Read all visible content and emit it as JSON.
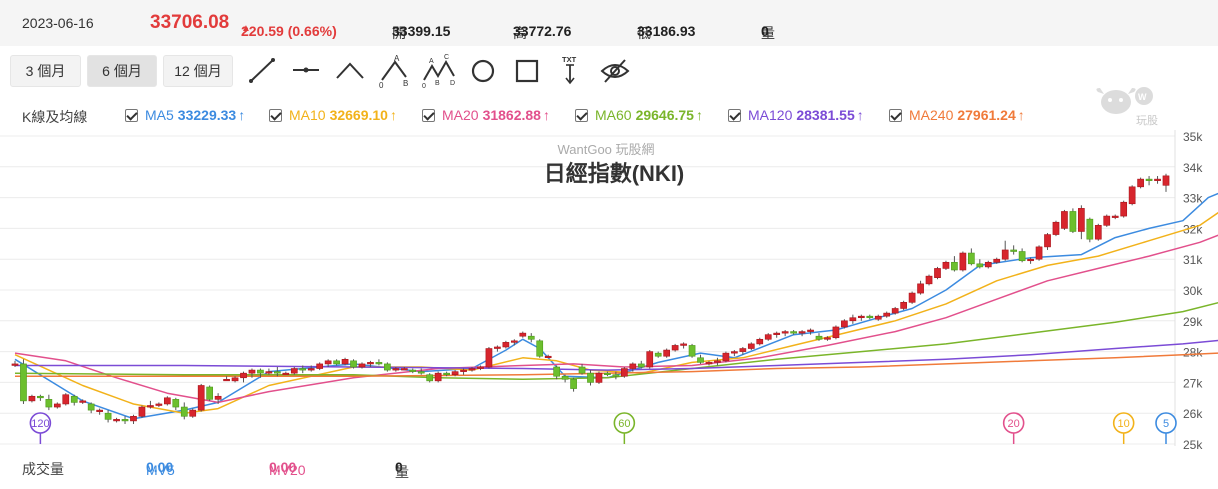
{
  "header": {
    "date": "2023-06-16",
    "price": "33706.08",
    "change": "220.59 (0.66%)",
    "open_label": "開",
    "open": "33399.15",
    "high_label": "高",
    "high": "33772.76",
    "low_label": "低",
    "low": "33186.93",
    "vol_label": "量",
    "vol": "0"
  },
  "toolbar": {
    "ranges": [
      "3 個月",
      "6 個月",
      "12 個月"
    ],
    "active_range": 1,
    "tools": [
      "line-tool-icon",
      "horizontal-line-tool-icon",
      "peak-line-tool-icon",
      "abc-pattern-tool-icon",
      "abcd-pattern-tool-icon",
      "circle-tool-icon",
      "rectangle-tool-icon",
      "text-tool-icon",
      "hide-drawings-icon"
    ],
    "tool_labels": {
      "abc": [
        "A",
        "0",
        "B"
      ],
      "abcd": [
        "A",
        "C",
        "0",
        "B",
        "D"
      ],
      "txt": "TXT"
    }
  },
  "ma_legend": {
    "label": "K線及均線",
    "items": [
      {
        "name": "MA5",
        "value": "33229.33",
        "arrow": "↑",
        "color": "#3c8be0"
      },
      {
        "name": "MA10",
        "value": "32669.10",
        "arrow": "↑",
        "color": "#f2b21a"
      },
      {
        "name": "MA20",
        "value": "31862.88",
        "arrow": "↑",
        "color": "#e2508c"
      },
      {
        "name": "MA60",
        "value": "29646.75",
        "arrow": "↑",
        "color": "#7ab52a"
      },
      {
        "name": "MA120",
        "value": "28381.55",
        "arrow": "↑",
        "color": "#7b4bd6"
      },
      {
        "name": "MA240",
        "value": "27961.24",
        "arrow": "↑",
        "color": "#f07a3a"
      }
    ]
  },
  "logo": {
    "text": "玩股網"
  },
  "volume_legend": {
    "label": "成交量",
    "mv5_label": "MV5",
    "mv5": "0.00",
    "mv5_color": "#3c8be0",
    "mv20_label": "MV20",
    "mv20": "0.00",
    "mv20_color": "#e2508c",
    "vol_label": "量",
    "vol": "0"
  },
  "colors": {
    "up": "#d7252d",
    "down": "#6cbf2e",
    "grid": "#ececec"
  },
  "chart_data": {
    "type": "candlestick",
    "watermark": "WantGoo 玩股網",
    "title": "日經指數(NKI)",
    "ylim": [
      25000,
      35000
    ],
    "yticks": [
      25000,
      26000,
      27000,
      28000,
      29000,
      30000,
      31000,
      32000,
      33000,
      34000,
      35000
    ],
    "ytick_labels": [
      "25k",
      "26k",
      "27k",
      "28k",
      "29k",
      "30k",
      "31k",
      "32k",
      "33k",
      "34k",
      "35k"
    ],
    "candles": [
      [
        27550,
        27700,
        27500,
        27600
      ],
      [
        27600,
        27750,
        26300,
        26400
      ],
      [
        26400,
        26600,
        26350,
        26550
      ],
      [
        26550,
        26600,
        26400,
        26500
      ],
      [
        26450,
        26600,
        26100,
        26200
      ],
      [
        26200,
        26350,
        26150,
        26300
      ],
      [
        26300,
        26650,
        26250,
        26600
      ],
      [
        26550,
        26600,
        26250,
        26350
      ],
      [
        26350,
        26450,
        26300,
        26400
      ],
      [
        26300,
        26350,
        26000,
        26100
      ],
      [
        26050,
        26150,
        25950,
        26100
      ],
      [
        26000,
        26100,
        25700,
        25800
      ],
      [
        25750,
        25850,
        25700,
        25800
      ],
      [
        25800,
        25900,
        25650,
        25750
      ],
      [
        25750,
        25950,
        25650,
        25900
      ],
      [
        25900,
        26250,
        25850,
        26200
      ],
      [
        26200,
        26400,
        26150,
        26250
      ],
      [
        26250,
        26350,
        26200,
        26300
      ],
      [
        26300,
        26550,
        26250,
        26500
      ],
      [
        26450,
        26500,
        26100,
        26200
      ],
      [
        26200,
        26350,
        25800,
        25900
      ],
      [
        25900,
        26150,
        25850,
        26100
      ],
      [
        26100,
        26950,
        26050,
        26900
      ],
      [
        26850,
        26900,
        26400,
        26450
      ],
      [
        26450,
        26650,
        26300,
        26550
      ],
      [
        27100,
        27200,
        27050,
        27100
      ],
      [
        27050,
        27200,
        27000,
        27150
      ],
      [
        27150,
        27350,
        27000,
        27300
      ],
      [
        27300,
        27450,
        27150,
        27400
      ],
      [
        27400,
        27450,
        27150,
        27300
      ],
      [
        27300,
        27450,
        27250,
        27350
      ],
      [
        27350,
        27500,
        27200,
        27300
      ],
      [
        27300,
        27350,
        27250,
        27300
      ],
      [
        27300,
        27500,
        27250,
        27450
      ],
      [
        27450,
        27550,
        27300,
        27400
      ],
      [
        27400,
        27550,
        27350,
        27450
      ],
      [
        27450,
        27650,
        27400,
        27600
      ],
      [
        27600,
        27750,
        27500,
        27700
      ],
      [
        27700,
        27750,
        27550,
        27600
      ],
      [
        27600,
        27800,
        27550,
        27750
      ],
      [
        27700,
        27750,
        27450,
        27500
      ],
      [
        27500,
        27650,
        27450,
        27600
      ],
      [
        27600,
        27700,
        27500,
        27650
      ],
      [
        27650,
        27750,
        27550,
        27600
      ],
      [
        27600,
        27650,
        27350,
        27400
      ],
      [
        27400,
        27500,
        27350,
        27450
      ],
      [
        27450,
        27500,
        27400,
        27450
      ],
      [
        27400,
        27450,
        27300,
        27350
      ],
      [
        27350,
        27450,
        27250,
        27300
      ],
      [
        27250,
        27300,
        27000,
        27050
      ],
      [
        27050,
        27350,
        27000,
        27300
      ],
      [
        27300,
        27350,
        27200,
        27250
      ],
      [
        27250,
        27400,
        27200,
        27350
      ],
      [
        27350,
        27450,
        27250,
        27400
      ],
      [
        27400,
        27500,
        27350,
        27450
      ],
      [
        27450,
        27550,
        27400,
        27500
      ],
      [
        27500,
        28150,
        27450,
        28100
      ],
      [
        28100,
        28200,
        28000,
        28150
      ],
      [
        28150,
        28350,
        28100,
        28300
      ],
      [
        28300,
        28400,
        28200,
        28350
      ],
      [
        28500,
        28650,
        28450,
        28600
      ],
      [
        28500,
        28600,
        28300,
        28400
      ],
      [
        28350,
        28400,
        27800,
        27850
      ],
      [
        27850,
        27900,
        27800,
        27850
      ],
      [
        27500,
        27550,
        27100,
        27200
      ],
      [
        27200,
        27250,
        27000,
        27100
      ],
      [
        27100,
        27150,
        26700,
        26800
      ],
      [
        27500,
        27600,
        27250,
        27300
      ],
      [
        27300,
        27400,
        26900,
        27000
      ],
      [
        27000,
        27350,
        26950,
        27300
      ],
      [
        27300,
        27350,
        27200,
        27250
      ],
      [
        27250,
        27350,
        27100,
        27200
      ],
      [
        27200,
        27500,
        27150,
        27450
      ],
      [
        27450,
        27650,
        27350,
        27600
      ],
      [
        27600,
        27700,
        27450,
        27500
      ],
      [
        27500,
        28050,
        27450,
        28000
      ],
      [
        27950,
        28000,
        27800,
        27850
      ],
      [
        27850,
        28100,
        27800,
        28050
      ],
      [
        28050,
        28250,
        28000,
        28200
      ],
      [
        28200,
        28300,
        28100,
        28250
      ],
      [
        28200,
        28250,
        27800,
        27850
      ],
      [
        27800,
        27900,
        27600,
        27650
      ],
      [
        27600,
        27700,
        27550,
        27650
      ],
      [
        27650,
        27800,
        27550,
        27700
      ],
      [
        27700,
        28000,
        27650,
        27950
      ],
      [
        27950,
        28050,
        27850,
        28000
      ],
      [
        28000,
        28150,
        27900,
        28100
      ],
      [
        28100,
        28300,
        28050,
        28250
      ],
      [
        28250,
        28450,
        28200,
        28400
      ],
      [
        28400,
        28600,
        28350,
        28550
      ],
      [
        28550,
        28650,
        28450,
        28600
      ],
      [
        28600,
        28700,
        28500,
        28650
      ],
      [
        28650,
        28700,
        28550,
        28600
      ],
      [
        28600,
        28700,
        28500,
        28650
      ],
      [
        28650,
        28750,
        28550,
        28700
      ],
      [
        28500,
        28600,
        28350,
        28400
      ],
      [
        28400,
        28500,
        28350,
        28450
      ],
      [
        28450,
        28850,
        28400,
        28800
      ],
      [
        28800,
        29050,
        28750,
        29000
      ],
      [
        29000,
        29200,
        28900,
        29100
      ],
      [
        29100,
        29200,
        29000,
        29150
      ],
      [
        29150,
        29200,
        29050,
        29100
      ],
      [
        29050,
        29200,
        29000,
        29150
      ],
      [
        29150,
        29300,
        29100,
        29250
      ],
      [
        29250,
        29450,
        29200,
        29400
      ],
      [
        29400,
        29650,
        29350,
        29600
      ],
      [
        29600,
        29950,
        29550,
        29900
      ],
      [
        29900,
        30300,
        29850,
        30200
      ],
      [
        30200,
        30500,
        30150,
        30450
      ],
      [
        30400,
        30750,
        30350,
        30700
      ],
      [
        30700,
        30950,
        30650,
        30900
      ],
      [
        30900,
        31100,
        30600,
        30650
      ],
      [
        30650,
        31250,
        30600,
        31200
      ],
      [
        31200,
        31350,
        30800,
        30850
      ],
      [
        30850,
        31000,
        30700,
        30750
      ],
      [
        30750,
        30950,
        30700,
        30900
      ],
      [
        30900,
        31050,
        30850,
        31000
      ],
      [
        31000,
        31600,
        30950,
        31300
      ],
      [
        31300,
        31450,
        31150,
        31250
      ],
      [
        31250,
        31350,
        30900,
        30950
      ],
      [
        30950,
        31050,
        30850,
        31000
      ],
      [
        31000,
        31450,
        30950,
        31400
      ],
      [
        31400,
        31850,
        31300,
        31800
      ],
      [
        31800,
        32250,
        31750,
        32200
      ],
      [
        32000,
        32600,
        31950,
        32550
      ],
      [
        32550,
        32650,
        31850,
        31900
      ],
      [
        31900,
        32750,
        31650,
        32650
      ],
      [
        32300,
        32350,
        31550,
        31650
      ],
      [
        31650,
        32150,
        31600,
        32100
      ],
      [
        32100,
        32450,
        32050,
        32400
      ],
      [
        32400,
        32450,
        32300,
        32400
      ],
      [
        32400,
        32900,
        32350,
        32850
      ],
      [
        32800,
        33400,
        32750,
        33350
      ],
      [
        33350,
        33650,
        33300,
        33600
      ],
      [
        33600,
        33700,
        33400,
        33550
      ],
      [
        33550,
        33700,
        33450,
        33600
      ],
      [
        33399,
        33773,
        33187,
        33706
      ]
    ],
    "ma_series_names": [
      "MA5",
      "MA10",
      "MA20",
      "MA60",
      "MA120",
      "MA240"
    ],
    "ma_series": [
      [
        [
          0,
          27750
        ],
        [
          8,
          26400
        ],
        [
          14,
          25820
        ],
        [
          20,
          26100
        ],
        [
          24,
          26350
        ],
        [
          30,
          27350
        ],
        [
          40,
          27600
        ],
        [
          48,
          27350
        ],
        [
          54,
          27450
        ],
        [
          58,
          28050
        ],
        [
          60,
          28400
        ],
        [
          62,
          28100
        ],
        [
          65,
          27200
        ],
        [
          70,
          27150
        ],
        [
          76,
          27650
        ],
        [
          81,
          27950
        ],
        [
          85,
          27800
        ],
        [
          92,
          28550
        ],
        [
          97,
          28700
        ],
        [
          102,
          29100
        ],
        [
          106,
          29400
        ],
        [
          110,
          30000
        ],
        [
          114,
          30800
        ],
        [
          120,
          31050
        ],
        [
          126,
          31150
        ],
        [
          130,
          31700
        ],
        [
          134,
          32000
        ],
        [
          138,
          32250
        ],
        [
          141,
          33000
        ],
        [
          143,
          33229
        ]
      ],
      [
        [
          0,
          27900
        ],
        [
          8,
          26900
        ],
        [
          14,
          26300
        ],
        [
          20,
          26000
        ],
        [
          24,
          26150
        ],
        [
          30,
          26900
        ],
        [
          40,
          27500
        ],
        [
          48,
          27500
        ],
        [
          54,
          27400
        ],
        [
          60,
          27800
        ],
        [
          64,
          27700
        ],
        [
          68,
          27400
        ],
        [
          74,
          27300
        ],
        [
          80,
          27650
        ],
        [
          86,
          27800
        ],
        [
          92,
          28200
        ],
        [
          98,
          28600
        ],
        [
          104,
          29000
        ],
        [
          110,
          29550
        ],
        [
          116,
          30300
        ],
        [
          122,
          30800
        ],
        [
          128,
          31100
        ],
        [
          134,
          31600
        ],
        [
          140,
          32100
        ],
        [
          143,
          32669
        ]
      ],
      [
        [
          0,
          27950
        ],
        [
          6,
          27700
        ],
        [
          12,
          27150
        ],
        [
          18,
          26650
        ],
        [
          24,
          26350
        ],
        [
          30,
          26700
        ],
        [
          40,
          27150
        ],
        [
          50,
          27450
        ],
        [
          60,
          27550
        ],
        [
          66,
          27600
        ],
        [
          72,
          27500
        ],
        [
          80,
          27550
        ],
        [
          88,
          27800
        ],
        [
          96,
          28200
        ],
        [
          104,
          28650
        ],
        [
          110,
          29100
        ],
        [
          116,
          29700
        ],
        [
          122,
          30300
        ],
        [
          128,
          30700
        ],
        [
          134,
          31100
        ],
        [
          140,
          31550
        ],
        [
          143,
          31863
        ]
      ],
      [
        [
          0,
          27300
        ],
        [
          20,
          27250
        ],
        [
          40,
          27250
        ],
        [
          50,
          27150
        ],
        [
          60,
          27100
        ],
        [
          70,
          27150
        ],
        [
          80,
          27450
        ],
        [
          90,
          27750
        ],
        [
          100,
          28000
        ],
        [
          110,
          28250
        ],
        [
          120,
          28600
        ],
        [
          130,
          28950
        ],
        [
          138,
          29300
        ],
        [
          143,
          29647
        ]
      ],
      [
        [
          0,
          27550
        ],
        [
          20,
          27550
        ],
        [
          40,
          27500
        ],
        [
          60,
          27450
        ],
        [
          70,
          27400
        ],
        [
          80,
          27450
        ],
        [
          90,
          27550
        ],
        [
          100,
          27650
        ],
        [
          110,
          27750
        ],
        [
          120,
          27900
        ],
        [
          130,
          28100
        ],
        [
          138,
          28250
        ],
        [
          143,
          28382
        ]
      ],
      [
        [
          0,
          27200
        ],
        [
          20,
          27200
        ],
        [
          40,
          27200
        ],
        [
          60,
          27250
        ],
        [
          70,
          27300
        ],
        [
          80,
          27350
        ],
        [
          90,
          27450
        ],
        [
          100,
          27500
        ],
        [
          110,
          27600
        ],
        [
          120,
          27700
        ],
        [
          130,
          27800
        ],
        [
          138,
          27900
        ],
        [
          143,
          27961
        ]
      ]
    ],
    "ma_markers": [
      {
        "label": "120",
        "index": 3
      },
      {
        "label": "60",
        "index": 72
      },
      {
        "label": "20",
        "index": 118
      },
      {
        "label": "10",
        "index": 131
      },
      {
        "label": "5",
        "index": 136
      }
    ]
  }
}
